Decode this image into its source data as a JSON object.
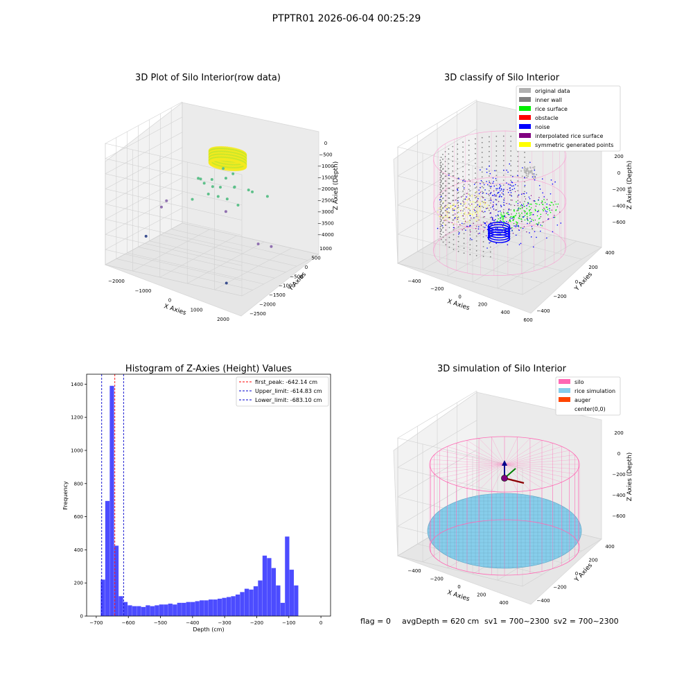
{
  "suptitle": "PTPTR01 2026-06-04 00:25:29",
  "footer": {
    "flag": "flag = 0",
    "avg": "avgDepth = 620 cm",
    "sv1": "sv1 = 700~2300",
    "sv2": "sv2 = 700~2300"
  },
  "chart_data": [
    {
      "type": "scatter3d",
      "title": "3D Plot of Silo Interior(row data)",
      "xlabel": "X Axies",
      "ylabel": "Y Axies",
      "zlabel": "Z Axies (Depth)",
      "x_ticks": [
        "−2000",
        "−1000",
        "0",
        "1000",
        "2000"
      ],
      "y_ticks": [
        "1000",
        "500",
        "0",
        "−500",
        "−1000",
        "−1500",
        "−2000",
        "−2500"
      ],
      "z_ticks": [
        "0",
        "−500",
        "−1000",
        "−1500",
        "−2000",
        "−2500",
        "−3000",
        "−3500",
        "−4000"
      ],
      "xlim": [
        -2300,
        2300
      ],
      "ylim": [
        -2600,
        1100
      ],
      "zlim": [
        -4100,
        100
      ],
      "ring": {
        "radius": 550,
        "z_top": -700,
        "z_bottom": -1100,
        "colors": [
          "#c8e62a",
          "#f5ea1e"
        ]
      },
      "points": [
        {
          "x": -850,
          "y": -200,
          "z": -1700
        },
        {
          "x": -700,
          "y": -300,
          "z": -1650
        },
        {
          "x": -600,
          "y": 100,
          "z": -1800
        },
        {
          "x": -400,
          "y": -150,
          "z": -1900
        },
        {
          "x": -200,
          "y": 200,
          "z": -1700
        },
        {
          "x": 0,
          "y": -350,
          "z": -1750
        },
        {
          "x": 200,
          "y": 50,
          "z": -1850
        },
        {
          "x": 400,
          "y": -250,
          "z": -1700
        },
        {
          "x": 600,
          "y": 150,
          "z": -1900
        },
        {
          "x": 900,
          "y": -100,
          "z": -1800
        },
        {
          "x": -300,
          "y": -500,
          "z": -2000
        },
        {
          "x": 300,
          "y": -450,
          "z": -2050
        },
        {
          "x": -1000,
          "y": 300,
          "z": -2100
        },
        {
          "x": 1200,
          "y": 200,
          "z": -2000
        },
        {
          "x": -100,
          "y": 400,
          "z": -1600
        },
        {
          "x": 100,
          "y": -600,
          "z": -1950
        },
        {
          "x": -1500,
          "y": -800,
          "z": -2400
        },
        {
          "x": -1600,
          "y": -900,
          "z": -2600
        },
        {
          "x": -1700,
          "y": -1500,
          "z": -3400
        },
        {
          "x": 1800,
          "y": -1100,
          "z": -3000
        },
        {
          "x": 2100,
          "y": -900,
          "z": -3100
        },
        {
          "x": 1500,
          "y": -2200,
          "z": -4000
        },
        {
          "x": 500,
          "y": -800,
          "z": -2300
        },
        {
          "x": -700,
          "y": -700,
          "z": -2200
        },
        {
          "x": 700,
          "y": -500,
          "z": -2150
        },
        {
          "x": -500,
          "y": 500,
          "z": -1550
        }
      ]
    },
    {
      "type": "scatter3d",
      "title": "3D classify of Silo Interior",
      "xlabel": "X Axies",
      "ylabel": "Y Axies",
      "zlabel": "Z Axies (Depth)",
      "x_ticks": [
        "−400",
        "−200",
        "0",
        "200",
        "400",
        "600"
      ],
      "y_ticks": [
        "400",
        "200",
        "0",
        "−200",
        "−400"
      ],
      "z_ticks": [
        "200",
        "0",
        "−200",
        "−400",
        "−600"
      ],
      "xlim": [
        -500,
        600
      ],
      "ylim": [
        -500,
        500
      ],
      "zlim": [
        -700,
        250
      ],
      "legend": [
        {
          "label": "original data",
          "color": "#b0b0b0"
        },
        {
          "label": "inner wall",
          "color": "#808080"
        },
        {
          "label": "rice surface",
          "color": "#00ee00"
        },
        {
          "label": "obstacle",
          "color": "#ff0000"
        },
        {
          "label": "noise",
          "color": "#0000ff"
        },
        {
          "label": "interpolated rice surface",
          "color": "#800080"
        },
        {
          "label": "symmetric generated points",
          "color": "#ffff00"
        }
      ],
      "silo": {
        "radius": 480,
        "z_top": 100,
        "z_bottom": -650,
        "color": "#ff7ec6"
      }
    },
    {
      "type": "histogram",
      "title": "Histogram of Z-Axies (Height) Values",
      "xlabel": "Depth (cm)",
      "ylabel": "Frequency",
      "xlim": [
        -730,
        30
      ],
      "ylim": [
        0,
        1460
      ],
      "x_ticks": [
        -700,
        -600,
        -500,
        -400,
        -300,
        -200,
        -100,
        0
      ],
      "y_ticks": [
        0,
        200,
        400,
        600,
        800,
        1000,
        1200,
        1400
      ],
      "bar_color": "#0000ff",
      "bin_start": -700,
      "bin_width": 14,
      "counts": [
        0,
        220,
        695,
        1390,
        425,
        120,
        85,
        65,
        60,
        60,
        55,
        65,
        60,
        65,
        70,
        70,
        75,
        70,
        80,
        80,
        85,
        85,
        90,
        95,
        95,
        100,
        100,
        105,
        110,
        115,
        120,
        130,
        145,
        165,
        160,
        180,
        215,
        365,
        350,
        290,
        185,
        80,
        480,
        280,
        185
      ],
      "vlines": [
        {
          "label": "first_peak: -642.14 cm",
          "value": -642.14,
          "color": "#ff0000"
        },
        {
          "label": "Upper_limit: -614.83 cm",
          "value": -614.83,
          "color": "#0000cc"
        },
        {
          "label": "Lower_limit: -683.10 cm",
          "value": -683.1,
          "color": "#0000cc"
        }
      ]
    },
    {
      "type": "surface3d",
      "title": "3D simulation of Silo Interior",
      "xlabel": "X Axies",
      "ylabel": "Y Axies",
      "zlabel": "Z Axies (Depth)",
      "x_ticks": [
        "−400",
        "−200",
        "0",
        "200",
        "400"
      ],
      "y_ticks": [
        "400",
        "200",
        "0",
        "−200",
        "−400"
      ],
      "z_ticks": [
        "200",
        "0",
        "−200",
        "−400",
        "−600"
      ],
      "legend": [
        {
          "label": "silo",
          "color": "#ff69b4"
        },
        {
          "label": "rice simulation",
          "color": "#87ceeb"
        },
        {
          "label": "auger",
          "color": "#ff4500"
        },
        {
          "label": "center(0,0)",
          "color": ""
        }
      ],
      "silo_color": "#ff69b4",
      "rice_color": "#87ceeb",
      "rice_depth": -620
    }
  ]
}
